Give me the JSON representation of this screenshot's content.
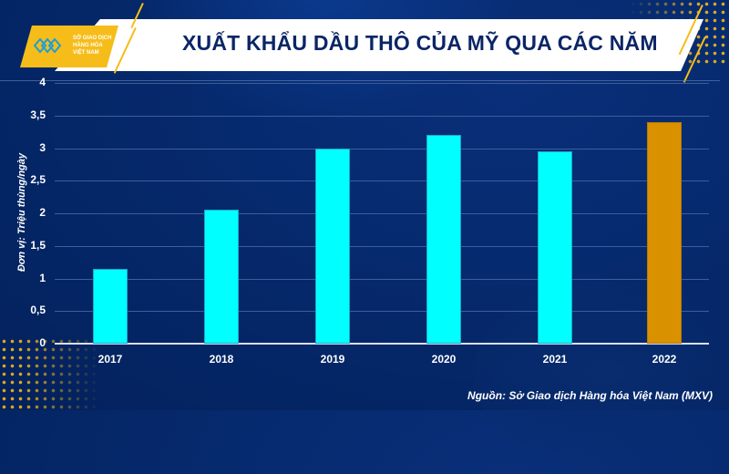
{
  "header": {
    "title": "XUẤT KHẨU DẦU THÔ CỦA MỸ QUA CÁC NĂM",
    "logo": {
      "line1": "SỞ GIAO DỊCH",
      "line2": "HÀNG HÓA",
      "line3": "VIỆT NAM",
      "icon": "mxv-logo-icon"
    }
  },
  "source": "Nguồn: Sở Giao dịch Hàng hóa Việt Nam (MXV)",
  "colors": {
    "background": "#03215c",
    "bar": "#00ffff",
    "highlight_bar": "#d99100",
    "accent": "#f6bd1a",
    "title": "#0b2566"
  },
  "chart_data": {
    "type": "bar",
    "title": "XUẤT KHẨU DẦU THÔ CỦA MỸ QUA CÁC NĂM",
    "xlabel": "",
    "ylabel": "Đơn vị: Triệu thùng/ngày",
    "categories": [
      "2017",
      "2018",
      "2019",
      "2020",
      "2021",
      "2022"
    ],
    "values": [
      1.15,
      2.05,
      3.0,
      3.2,
      2.95,
      3.4
    ],
    "values_note": "Estimated from bar heights; no data labels shown in the chart",
    "bar_colors": [
      "#00ffff",
      "#00ffff",
      "#00ffff",
      "#00ffff",
      "#00ffff",
      "#d99100"
    ],
    "ylim": [
      0,
      4
    ],
    "yticks": [
      "0",
      "0,5",
      "1",
      "1,5",
      "2",
      "2,5",
      "3",
      "3,5",
      "4"
    ],
    "grid": true,
    "legend": null
  }
}
